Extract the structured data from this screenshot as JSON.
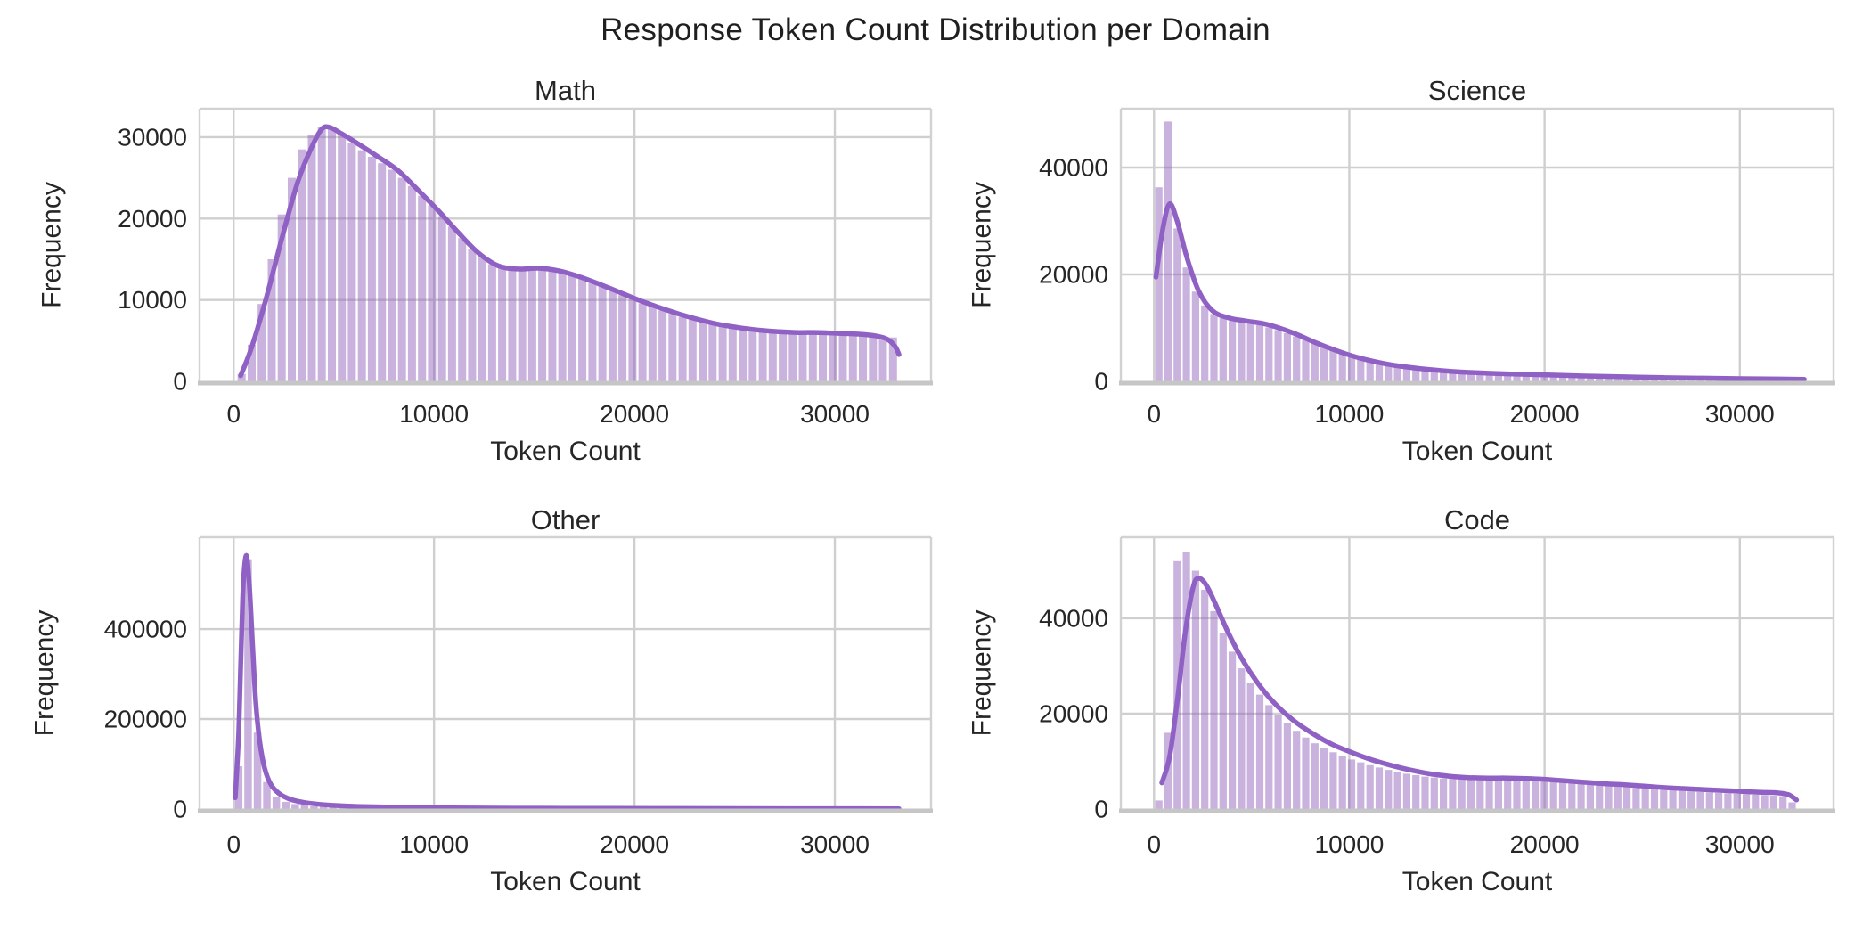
{
  "figure": {
    "title": "Response Token Count Distribution per Domain"
  },
  "colors": {
    "bar_fill": "#9467bd",
    "bar_opacity": 0.5,
    "kde_line": "#9061c4",
    "grid": "#cfcfcf",
    "spine": "#d2d2d2",
    "bottom_spine": "#c6c6c6",
    "text": "#262626"
  },
  "chart_data": [
    {
      "type": "histogram+kde",
      "title": "Math",
      "xlabel": "Token Count",
      "ylabel": "Frequency",
      "grid": true,
      "xlim": [
        -1700,
        34800
      ],
      "ylim": [
        0,
        33500
      ],
      "xticks": [
        0,
        10000,
        20000,
        30000
      ],
      "xtick_labels": [
        "0",
        "10000",
        "20000",
        "30000"
      ],
      "yticks": [
        0,
        10000,
        20000,
        30000
      ],
      "ytick_labels": [
        "0",
        "10000",
        "20000",
        "30000"
      ],
      "bin_start": 400,
      "bin_width": 500,
      "bar_values": [
        900,
        4500,
        9500,
        15000,
        20500,
        25000,
        28500,
        30300,
        31300,
        31000,
        30200,
        29300,
        28400,
        27600,
        26800,
        26000,
        25000,
        24000,
        22800,
        21600,
        20300,
        19000,
        17600,
        16300,
        15200,
        14400,
        13900,
        13700,
        13700,
        13800,
        13800,
        13700,
        13400,
        13100,
        12700,
        12200,
        11700,
        11100,
        10600,
        10100,
        9600,
        9100,
        8700,
        8300,
        7900,
        7600,
        7300,
        7000,
        6800,
        6600,
        6500,
        6300,
        6200,
        6100,
        6100,
        6000,
        6000,
        6000,
        5900,
        5900,
        5800,
        5700,
        5600,
        5500,
        5300,
        5400
      ],
      "kde": [
        [
          350,
          700
        ],
        [
          900,
          4200
        ],
        [
          1600,
          10000
        ],
        [
          2400,
          17500
        ],
        [
          3200,
          24500
        ],
        [
          3900,
          28800
        ],
        [
          4400,
          31000
        ],
        [
          4800,
          31200
        ],
        [
          5400,
          30400
        ],
        [
          6200,
          29200
        ],
        [
          7200,
          27600
        ],
        [
          8200,
          25900
        ],
        [
          9200,
          23500
        ],
        [
          10200,
          21000
        ],
        [
          11200,
          18300
        ],
        [
          12200,
          15800
        ],
        [
          13200,
          14200
        ],
        [
          14200,
          13800
        ],
        [
          15200,
          13900
        ],
        [
          16200,
          13600
        ],
        [
          17200,
          12900
        ],
        [
          18200,
          12000
        ],
        [
          19200,
          11000
        ],
        [
          20200,
          10000
        ],
        [
          21200,
          9100
        ],
        [
          22200,
          8300
        ],
        [
          23200,
          7600
        ],
        [
          24200,
          7000
        ],
        [
          25200,
          6600
        ],
        [
          26200,
          6300
        ],
        [
          27200,
          6100
        ],
        [
          28200,
          6000
        ],
        [
          29200,
          6000
        ],
        [
          30200,
          5900
        ],
        [
          31200,
          5800
        ],
        [
          32000,
          5600
        ],
        [
          32600,
          5200
        ],
        [
          33000,
          4300
        ],
        [
          33200,
          3300
        ]
      ]
    },
    {
      "type": "histogram+kde",
      "title": "Science",
      "xlabel": "Token Count",
      "ylabel": "Frequency",
      "grid": true,
      "xlim": [
        -1700,
        34800
      ],
      "ylim": [
        0,
        51000
      ],
      "xticks": [
        0,
        10000,
        20000,
        30000
      ],
      "xtick_labels": [
        "0",
        "10000",
        "20000",
        "30000"
      ],
      "yticks": [
        0,
        20000,
        40000
      ],
      "ytick_labels": [
        "0",
        "20000",
        "40000"
      ],
      "bin_start": 250,
      "bin_width": 470,
      "bar_values": [
        36300,
        48600,
        28600,
        21300,
        16800,
        14200,
        12600,
        11800,
        11300,
        11000,
        10800,
        10500,
        10100,
        9600,
        9000,
        8400,
        7800,
        7100,
        6500,
        5900,
        5300,
        4800,
        4300,
        3900,
        3500,
        3200,
        2900,
        2700,
        2500,
        2300,
        2200,
        2000,
        1900,
        1800,
        1700,
        1600,
        1600,
        1500,
        1400,
        1400,
        1300,
        1300,
        1200,
        1200,
        1100,
        1100,
        1000,
        1000,
        1000,
        900,
        900,
        900,
        800,
        800,
        800,
        700,
        700,
        700,
        600,
        600,
        600,
        600,
        500,
        500,
        500,
        500,
        400,
        400,
        400,
        400
      ],
      "kde": [
        [
          100,
          19500
        ],
        [
          450,
          28500
        ],
        [
          800,
          33200
        ],
        [
          1200,
          29800
        ],
        [
          1700,
          23000
        ],
        [
          2300,
          16800
        ],
        [
          3000,
          13200
        ],
        [
          3800,
          11900
        ],
        [
          4700,
          11300
        ],
        [
          5600,
          10800
        ],
        [
          6400,
          10000
        ],
        [
          7300,
          8800
        ],
        [
          8300,
          7200
        ],
        [
          9300,
          5800
        ],
        [
          10300,
          4600
        ],
        [
          11300,
          3700
        ],
        [
          12300,
          3000
        ],
        [
          13600,
          2400
        ],
        [
          15100,
          1900
        ],
        [
          16600,
          1600
        ],
        [
          18100,
          1400
        ],
        [
          20100,
          1200
        ],
        [
          22100,
          1000
        ],
        [
          24100,
          850
        ],
        [
          26100,
          700
        ],
        [
          28100,
          600
        ],
        [
          30100,
          500
        ],
        [
          32100,
          430
        ],
        [
          33300,
          380
        ]
      ]
    },
    {
      "type": "histogram+kde",
      "title": "Other",
      "xlabel": "Token Count",
      "ylabel": "Frequency",
      "grid": true,
      "xlim": [
        -1700,
        34800
      ],
      "ylim": [
        0,
        604000
      ],
      "xticks": [
        0,
        10000,
        20000,
        30000
      ],
      "xtick_labels": [
        "0",
        "10000",
        "20000",
        "30000"
      ],
      "yticks": [
        0,
        200000,
        400000
      ],
      "ytick_labels": [
        "0",
        "200000",
        "400000"
      ],
      "bin_start": 250,
      "bin_width": 470,
      "bar_values": [
        95000,
        555000,
        170000,
        60000,
        28000,
        16000,
        11000,
        8000,
        6000,
        5000,
        4200,
        3500,
        3000,
        2600,
        2300,
        2000,
        1800,
        1600,
        1500,
        1300,
        1200,
        1100,
        1000,
        900,
        900,
        800,
        800,
        700,
        700,
        600,
        600,
        600,
        500,
        500,
        500,
        400,
        400,
        400,
        400,
        300,
        300,
        300,
        300,
        300,
        200,
        200,
        200,
        200,
        200,
        200,
        200,
        200,
        100,
        100,
        100,
        100,
        100,
        100,
        100,
        100,
        100,
        100,
        100,
        100,
        100,
        100,
        100,
        100,
        100,
        100
      ],
      "kde": [
        [
          80,
          25000
        ],
        [
          260,
          180000
        ],
        [
          450,
          470000
        ],
        [
          620,
          563000
        ],
        [
          780,
          500000
        ],
        [
          950,
          360000
        ],
        [
          1100,
          240000
        ],
        [
          1300,
          150000
        ],
        [
          1550,
          90000
        ],
        [
          1850,
          55000
        ],
        [
          2250,
          35000
        ],
        [
          2750,
          23000
        ],
        [
          3350,
          16000
        ],
        [
          4050,
          11500
        ],
        [
          4850,
          8500
        ],
        [
          5750,
          6500
        ],
        [
          6750,
          5100
        ],
        [
          7850,
          4100
        ],
        [
          9050,
          3300
        ],
        [
          10350,
          2700
        ],
        [
          12000,
          2200
        ],
        [
          14000,
          1800
        ],
        [
          16500,
          1500
        ],
        [
          19000,
          1300
        ],
        [
          22000,
          1100
        ],
        [
          25000,
          950
        ],
        [
          28000,
          830
        ],
        [
          31000,
          730
        ],
        [
          33200,
          650
        ]
      ]
    },
    {
      "type": "histogram+kde",
      "title": "Code",
      "xlabel": "Token Count",
      "ylabel": "Frequency",
      "grid": true,
      "xlim": [
        -1700,
        34800
      ],
      "ylim": [
        0,
        57000
      ],
      "xticks": [
        0,
        10000,
        20000,
        30000
      ],
      "xtick_labels": [
        "0",
        "10000",
        "20000",
        "30000"
      ],
      "yticks": [
        0,
        20000,
        40000
      ],
      "ytick_labels": [
        "0",
        "20000",
        "40000"
      ],
      "bin_start": 250,
      "bin_width": 470,
      "bar_values": [
        1800,
        16000,
        52000,
        54000,
        50000,
        46000,
        41500,
        37000,
        33000,
        29500,
        26500,
        24000,
        21800,
        19800,
        18000,
        16400,
        15000,
        13800,
        12800,
        11900,
        11100,
        10400,
        9800,
        9200,
        8700,
        8200,
        7800,
        7400,
        7100,
        6800,
        6600,
        6400,
        6300,
        6300,
        6300,
        6400,
        6400,
        6400,
        6300,
        6200,
        6100,
        6000,
        5900,
        5800,
        5600,
        5500,
        5300,
        5200,
        5000,
        4900,
        4700,
        4600,
        4400,
        4300,
        4200,
        4000,
        3900,
        3800,
        3700,
        3600,
        3500,
        3400,
        3300,
        3200,
        3100,
        3000,
        2900,
        2800,
        2700,
        1400
      ],
      "kde": [
        [
          400,
          5500
        ],
        [
          800,
          11000
        ],
        [
          1200,
          23000
        ],
        [
          1600,
          37000
        ],
        [
          2000,
          46500
        ],
        [
          2300,
          48400
        ],
        [
          2700,
          46800
        ],
        [
          3200,
          42500
        ],
        [
          3800,
          37000
        ],
        [
          4500,
          31500
        ],
        [
          5300,
          26500
        ],
        [
          6100,
          22500
        ],
        [
          7100,
          18700
        ],
        [
          8100,
          15900
        ],
        [
          9100,
          13600
        ],
        [
          10100,
          11900
        ],
        [
          11100,
          10400
        ],
        [
          12100,
          9200
        ],
        [
          13100,
          8200
        ],
        [
          14100,
          7400
        ],
        [
          15100,
          6900
        ],
        [
          16100,
          6600
        ],
        [
          17100,
          6500
        ],
        [
          18100,
          6500
        ],
        [
          19100,
          6400
        ],
        [
          20100,
          6200
        ],
        [
          21100,
          5900
        ],
        [
          22100,
          5600
        ],
        [
          23100,
          5300
        ],
        [
          24100,
          5100
        ],
        [
          25100,
          4800
        ],
        [
          26100,
          4500
        ],
        [
          27100,
          4300
        ],
        [
          28100,
          4100
        ],
        [
          29100,
          3900
        ],
        [
          30100,
          3700
        ],
        [
          31100,
          3500
        ],
        [
          31900,
          3400
        ],
        [
          32500,
          3000
        ],
        [
          32900,
          1900
        ]
      ]
    }
  ]
}
